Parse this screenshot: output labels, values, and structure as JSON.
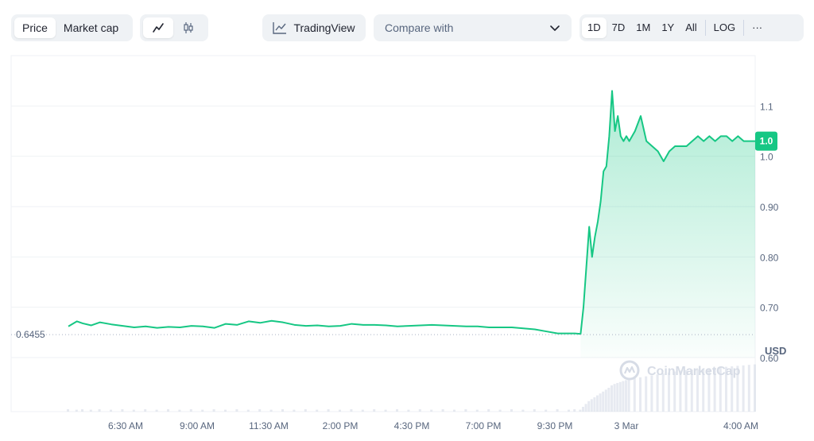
{
  "toolbar": {
    "type_tabs": [
      "Price",
      "Market cap"
    ],
    "active_type": "Price",
    "chart_styles": [
      "line-chart-icon",
      "candlestick-icon"
    ],
    "active_style": "line-chart-icon",
    "tradingview_label": "TradingView",
    "compare_label": "Compare with",
    "ranges": [
      "1D",
      "7D",
      "1M",
      "1Y",
      "All"
    ],
    "active_range": "1D",
    "log_label": "LOG",
    "more_label": "···"
  },
  "colors": {
    "line": "#16c784",
    "accent": "#16c784",
    "grid": "#eff2f5",
    "axis_text": "#58667e",
    "volume": "#cfd6e4"
  },
  "watermark": "CoinMarketCap",
  "chart_data": {
    "type": "area",
    "ylabel": "USD",
    "ylim": [
      0.6,
      1.2
    ],
    "y_ticks": [
      "1.1",
      "1.0",
      "0.90",
      "0.80",
      "0.70",
      "0.60"
    ],
    "y_tick_values": [
      1.1,
      1.0,
      0.9,
      0.8,
      0.7,
      0.6
    ],
    "x_ticks": [
      "6:30 AM",
      "9:00 AM",
      "11:30 AM",
      "2:00 PM",
      "4:30 PM",
      "7:00 PM",
      "9:30 PM",
      "3 Mar",
      "4:00 AM"
    ],
    "x_tick_hours": [
      6.5,
      9,
      11.5,
      14,
      16.5,
      19,
      21.5,
      24,
      28
    ],
    "open_price": 0.6455,
    "open_label": "0.6455",
    "current_price": 1.03,
    "current_label": "1.0",
    "grid": true,
    "series": [
      {
        "x": [
          4.5,
          4.8,
          5.0,
          5.3,
          5.6,
          6.0,
          6.4,
          6.8,
          7.2,
          7.6,
          8.0,
          8.4,
          8.8,
          9.2,
          9.6,
          10.0,
          10.4,
          10.8,
          11.2,
          11.6,
          12.0,
          12.4,
          12.8,
          13.2,
          13.6,
          14.0,
          14.4,
          14.8,
          15.2,
          15.6,
          16.0,
          16.4,
          16.8,
          17.2,
          17.6,
          18.0,
          18.4,
          18.8,
          19.2,
          19.6,
          20.0,
          20.4,
          20.8,
          21.2,
          21.6,
          22.0,
          22.2,
          22.4,
          22.5,
          22.6,
          22.7,
          22.8,
          22.9,
          23.0,
          23.1,
          23.2,
          23.3,
          23.4,
          23.5,
          23.6,
          23.7,
          23.8,
          23.9,
          24.0,
          24.1,
          24.3,
          24.5,
          24.7,
          24.9,
          25.1,
          25.3,
          25.5,
          25.7,
          25.9,
          26.1,
          26.3,
          26.5,
          26.7,
          26.9,
          27.1,
          27.3,
          27.5,
          27.7,
          27.9,
          28.1,
          28.3,
          28.5
        ],
        "y": [
          0.662,
          0.672,
          0.668,
          0.664,
          0.67,
          0.666,
          0.663,
          0.66,
          0.662,
          0.659,
          0.661,
          0.66,
          0.663,
          0.662,
          0.659,
          0.667,
          0.665,
          0.672,
          0.669,
          0.673,
          0.67,
          0.665,
          0.663,
          0.664,
          0.662,
          0.663,
          0.667,
          0.665,
          0.665,
          0.664,
          0.662,
          0.663,
          0.664,
          0.665,
          0.664,
          0.663,
          0.662,
          0.662,
          0.66,
          0.66,
          0.66,
          0.658,
          0.656,
          0.652,
          0.648,
          0.648,
          0.648,
          0.647,
          0.7,
          0.78,
          0.86,
          0.8,
          0.84,
          0.87,
          0.91,
          0.97,
          0.98,
          1.04,
          1.13,
          1.05,
          1.08,
          1.04,
          1.03,
          1.04,
          1.03,
          1.05,
          1.08,
          1.03,
          1.02,
          1.01,
          0.99,
          1.01,
          1.02,
          1.02,
          1.02,
          1.03,
          1.04,
          1.03,
          1.04,
          1.03,
          1.04,
          1.04,
          1.03,
          1.04,
          1.03,
          1.03,
          1.03
        ]
      }
    ],
    "volume": [
      0.05,
      0.04,
      0.05,
      0.04,
      0.05,
      0.04,
      0.05,
      0.04,
      0.05,
      0.04,
      0.05,
      0.04,
      0.05,
      0.04,
      0.05,
      0.04,
      0.05,
      0.04,
      0.05,
      0.04,
      0.05,
      0.04,
      0.05,
      0.04,
      0.05,
      0.04,
      0.05,
      0.04,
      0.05,
      0.04,
      0.05,
      0.04,
      0.05,
      0.04,
      0.05,
      0.04,
      0.05,
      0.04,
      0.05,
      0.04,
      0.05,
      0.04,
      0.05,
      0.04,
      0.05,
      0.04,
      0.05,
      0.04,
      0.1,
      0.16,
      0.22,
      0.26,
      0.3,
      0.34,
      0.38,
      0.42,
      0.46,
      0.5,
      0.55,
      0.58,
      0.6,
      0.62,
      0.64,
      0.66,
      0.68,
      0.7,
      0.72,
      0.74,
      0.76,
      0.78,
      0.8,
      0.82,
      0.84,
      0.86,
      0.87,
      0.88,
      0.89,
      0.9,
      0.91,
      0.92,
      0.93,
      0.94,
      0.95,
      0.96,
      0.97,
      0.98,
      0.99
    ]
  }
}
